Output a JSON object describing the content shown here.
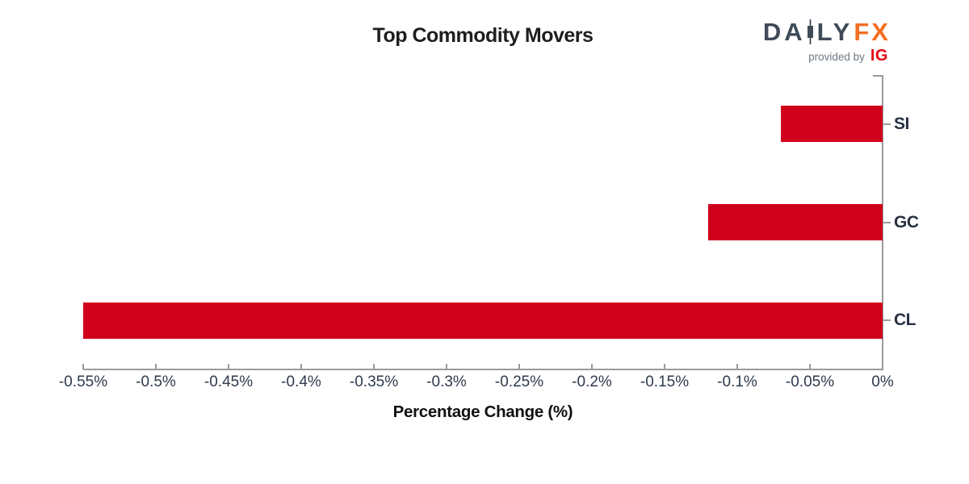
{
  "header": {
    "title": "Top Commodity Movers",
    "logo": {
      "daily_left": "DA",
      "daily_right": "LY",
      "fx": "FX",
      "provided_by": "provided by",
      "ig": "IG",
      "daily_color": "#404b59",
      "fx_color": "#f36f21",
      "ig_color": "#e30613",
      "provided_by_color": "#6f7983"
    }
  },
  "chart_data": {
    "type": "bar",
    "orientation": "horizontal",
    "title": "Top Commodity Movers",
    "categories": [
      "SI",
      "GC",
      "CL"
    ],
    "values": [
      -0.07,
      -0.12,
      -0.55
    ],
    "xlabel": "Percentage Change (%)",
    "xlim": [
      -0.55,
      0
    ],
    "xtick_values": [
      -0.55,
      -0.5,
      -0.45,
      -0.4,
      -0.35,
      -0.3,
      -0.25,
      -0.2,
      -0.15,
      -0.1,
      -0.05,
      0
    ],
    "xtick_labels": [
      "-0.55%",
      "-0.5%",
      "-0.45%",
      "-0.4%",
      "-0.35%",
      "-0.3%",
      "-0.25%",
      "-0.2%",
      "-0.15%",
      "-0.1%",
      "-0.05%",
      "0%"
    ],
    "bar_color": "#d0021b",
    "axis_color": "#9b9b9b",
    "tick_label_color": "#2e3a4c",
    "category_label_color": "#273142",
    "grid": false,
    "legend": "none",
    "category_axis_side": "right",
    "value_axis_side": "bottom"
  }
}
